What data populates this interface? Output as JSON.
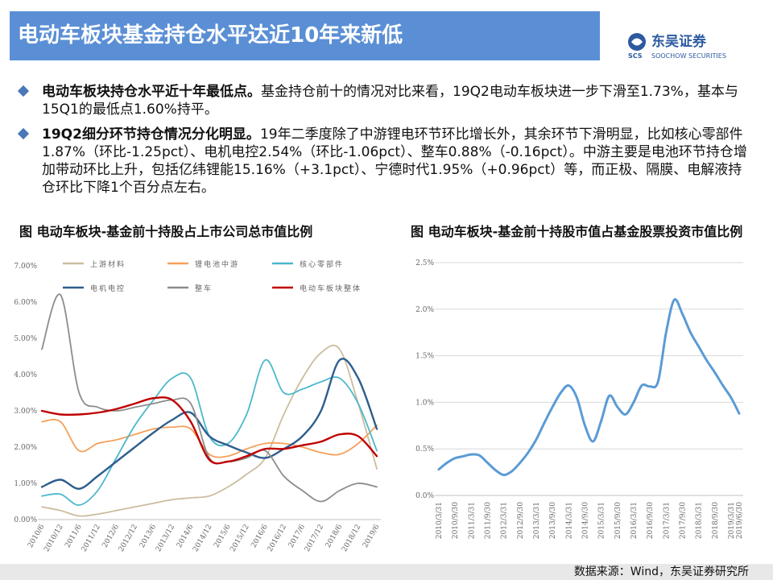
{
  "header": {
    "title": "电动车板块基金持仓水平达近10年来新低",
    "logo_mark": "SCS",
    "logo_name": "东吴证券",
    "logo_en": "SOOCHOW SECURITIES"
  },
  "bullets": [
    {
      "bold": "电动车板块持仓水平近十年最低点。",
      "text": "基金持仓前十的情况对比来看，19Q2电动车板块进一步下滑至1.73%，基本与15Q1的最低点1.60%持平。"
    },
    {
      "bold": "19Q2细分环节持仓情况分化明显。",
      "text": "19年二季度除了中游锂电环节环比增长外，其余环节下滑明显，比如核心零部件1.87%（环比-1.25pct）、电机电控2.54%（环比-1.06pct）、整车0.88%（-0.16pct）。中游主要是电池环节持仓增加带动环比上升，包括亿纬锂能15.16%（+3.1pct）、宁德时代1.95%（+0.96pct）等，而正极、隔膜、电解液持仓环比下降1个百分点左右。"
    }
  ],
  "chart_data": [
    {
      "type": "line",
      "title": "图  电动车板块-基金前十持股占上市公司总市值比例",
      "categories": [
        "2010/6",
        "2010/12",
        "2011/6",
        "2011/12",
        "2012/6",
        "2012/12",
        "2013/6",
        "2013/12",
        "2014/6",
        "2014/12",
        "2015/6",
        "2015/12",
        "2016/6",
        "2016/12",
        "2017/6",
        "2017/12",
        "2018/6",
        "2018/12",
        "2019/6"
      ],
      "series": [
        {
          "name": "上游材料",
          "color": "#cbbd9f",
          "values": [
            0.35,
            0.25,
            0.1,
            0.15,
            0.25,
            0.35,
            0.45,
            0.55,
            0.6,
            0.65,
            0.9,
            1.25,
            1.7,
            2.9,
            3.9,
            4.6,
            4.7,
            3.2,
            1.4
          ]
        },
        {
          "name": "锂电池中游",
          "color": "#f5a05a",
          "values": [
            2.7,
            2.7,
            1.9,
            2.1,
            2.2,
            2.35,
            2.5,
            2.55,
            2.5,
            1.8,
            1.75,
            1.95,
            2.1,
            2.1,
            2.0,
            1.85,
            1.8,
            2.1,
            2.6
          ]
        },
        {
          "name": "核心零部件",
          "color": "#4bb8cc",
          "values": [
            0.65,
            0.7,
            0.4,
            0.8,
            1.7,
            2.6,
            3.3,
            3.9,
            3.9,
            2.3,
            2.1,
            2.9,
            4.4,
            3.5,
            3.6,
            3.8,
            3.9,
            3.2,
            1.9
          ]
        },
        {
          "name": "电机电控",
          "color": "#2e5e8e",
          "values": [
            0.9,
            1.1,
            0.85,
            1.2,
            1.6,
            2.0,
            2.4,
            2.75,
            2.95,
            2.3,
            2.05,
            1.85,
            1.7,
            1.95,
            2.3,
            3.0,
            4.4,
            3.9,
            2.5
          ]
        },
        {
          "name": "整车",
          "color": "#8c8c8c",
          "values": [
            4.7,
            6.2,
            3.5,
            3.1,
            3.0,
            3.1,
            3.2,
            3.3,
            3.2,
            1.7,
            1.6,
            1.7,
            1.9,
            1.2,
            0.8,
            0.5,
            0.8,
            1.0,
            0.9
          ]
        },
        {
          "name": "电动车板块整体",
          "color": "#c00000",
          "values": [
            3.0,
            2.9,
            2.9,
            2.95,
            3.05,
            3.2,
            3.35,
            3.3,
            2.7,
            1.65,
            1.6,
            1.75,
            1.95,
            1.95,
            2.05,
            2.15,
            2.35,
            2.3,
            1.75
          ]
        }
      ],
      "ylim": [
        0,
        7
      ],
      "yticks": [
        {
          "value": 0,
          "label": "0.00%"
        },
        {
          "value": 1,
          "label": "1.00%"
        },
        {
          "value": 2,
          "label": "2.00%"
        },
        {
          "value": 3,
          "label": "3.00%"
        },
        {
          "value": 4,
          "label": "4.00%"
        },
        {
          "value": 5,
          "label": "5.00%"
        },
        {
          "value": 6,
          "label": "6.00%"
        },
        {
          "value": 7,
          "label": "7.00%"
        }
      ],
      "grid": false
    },
    {
      "type": "line",
      "title": "图  电动车板块-基金前十持股市值占基金股票投资市值比例",
      "categories": [
        "2010/3/31",
        null,
        "2010/9/30",
        null,
        "2011/3/31",
        null,
        "2011/9/30",
        null,
        "2012/3/31",
        null,
        "2012/9/30",
        null,
        "2013/3/31",
        null,
        "2013/9/30",
        null,
        "2014/3/31",
        null,
        "2014/9/30",
        null,
        "2015/3/31",
        null,
        "2015/9/30",
        null,
        "2016/3/31",
        null,
        "2016/9/30",
        null,
        "2017/3/31",
        null,
        "2017/9/30",
        null,
        "2018/3/31",
        null,
        "2018/9/30",
        null,
        "2019/3/31",
        "2019/6/30"
      ],
      "values": [
        0.28,
        0.35,
        0.4,
        0.42,
        0.44,
        0.43,
        0.35,
        0.27,
        0.22,
        0.26,
        0.35,
        0.46,
        0.6,
        0.78,
        0.95,
        1.1,
        1.18,
        1.05,
        0.75,
        0.58,
        0.8,
        1.07,
        0.95,
        0.87,
        1.0,
        1.18,
        1.17,
        1.22,
        1.75,
        2.1,
        1.95,
        1.75,
        1.6,
        1.45,
        1.32,
        1.18,
        1.05,
        0.88
      ],
      "color": "#5b9bd5",
      "ylim": [
        0,
        2.5
      ],
      "yticks": [
        {
          "value": 0,
          "label": "0.0%"
        },
        {
          "value": 0.5,
          "label": "0.5%"
        },
        {
          "value": 1,
          "label": "1.0%"
        },
        {
          "value": 1.5,
          "label": "1.5%"
        },
        {
          "value": 2,
          "label": "2.0%"
        },
        {
          "value": 2.5,
          "label": "2.5%"
        }
      ],
      "grid": true
    }
  ],
  "source": "数据来源：Wind，东吴证券研究所"
}
